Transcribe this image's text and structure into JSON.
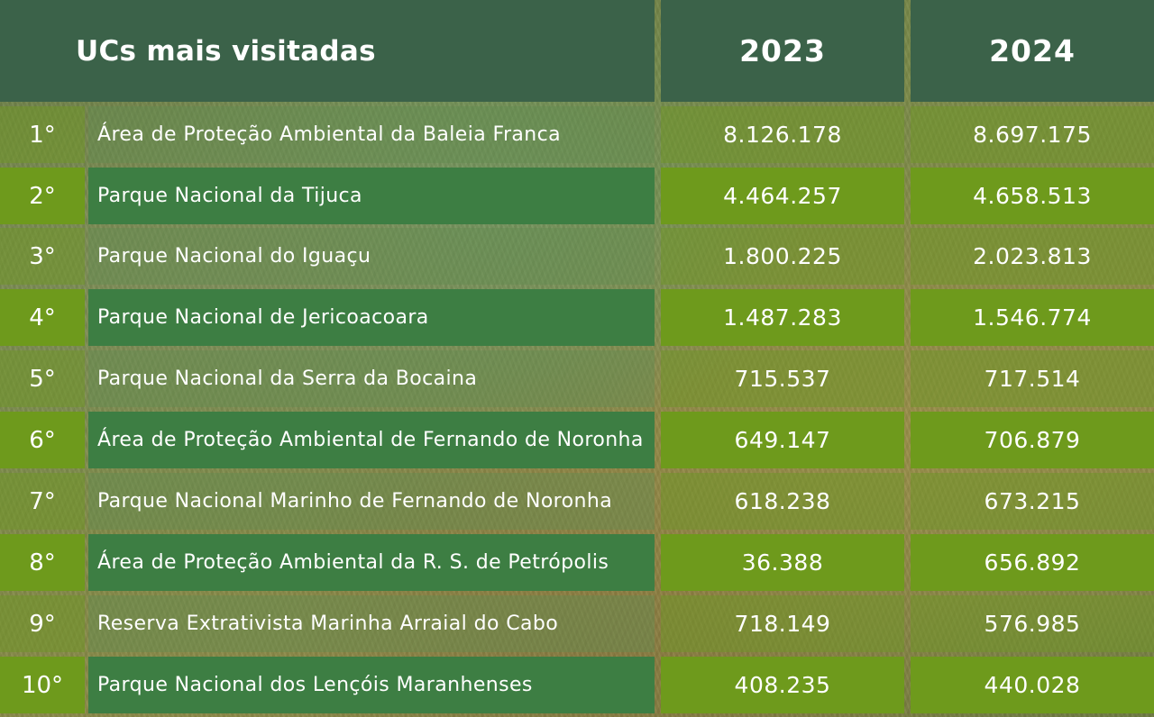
{
  "chart_data": {
    "type": "table",
    "header": {
      "title": "UCs mais visitadas",
      "years": [
        "2023",
        "2024"
      ]
    },
    "rows": [
      {
        "rank": "1°",
        "name": "Área de Proteção Ambiental da Baleia Franca",
        "v2023": "8.126.178",
        "v2024": "8.697.175"
      },
      {
        "rank": "2°",
        "name": "Parque Nacional da Tijuca",
        "v2023": "4.464.257",
        "v2024": "4.658.513"
      },
      {
        "rank": "3°",
        "name": "Parque Nacional do Iguaçu",
        "v2023": "1.800.225",
        "v2024": "2.023.813"
      },
      {
        "rank": "4°",
        "name": "Parque Nacional de Jericoacoara",
        "v2023": "1.487.283",
        "v2024": "1.546.774"
      },
      {
        "rank": "5°",
        "name": "Parque Nacional da Serra da Bocaina",
        "v2023": "715.537",
        "v2024": "717.514"
      },
      {
        "rank": "6°",
        "name": "Área de Proteção Ambiental de Fernando de Noronha",
        "v2023": "649.147",
        "v2024": "706.879"
      },
      {
        "rank": "7°",
        "name": "Parque Nacional Marinho de Fernando de Noronha",
        "v2023": "618.238",
        "v2024": "673.215"
      },
      {
        "rank": "8°",
        "name": "Área de Proteção Ambiental da R. S. de Petrópolis",
        "v2023": "36.388",
        "v2024": "656.892"
      },
      {
        "rank": "9°",
        "name": "Reserva Extrativista Marinha Arraial do Cabo",
        "v2023": "718.149",
        "v2024": "576.985"
      },
      {
        "rank": "10°",
        "name": "Parque Nacional dos Lençóis Maranhenses",
        "v2023": "408.235",
        "v2024": "440.028"
      }
    ]
  },
  "colors": {
    "header": "#3b6249",
    "row_green": "#6e9a1c",
    "row_dark_green": "#3d7e43"
  }
}
